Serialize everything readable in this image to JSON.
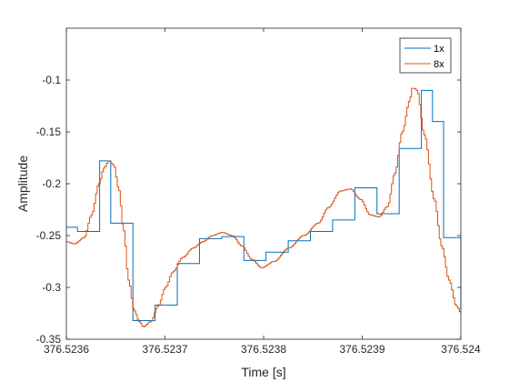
{
  "chart_data": {
    "type": "line",
    "title": "",
    "xlabel": "Time [s]",
    "ylabel": "Amplitude",
    "xlim": [
      376.5236,
      376.524
    ],
    "ylim": [
      -0.35,
      -0.05
    ],
    "x_ticks": [
      "376.5236",
      "376.5237",
      "376.5238",
      "376.5239",
      "376.524"
    ],
    "x_tick_values": [
      376.5236,
      376.5237,
      376.5238,
      376.5239,
      376.524
    ],
    "y_ticks": [
      "-0.35",
      "-0.3",
      "-0.25",
      "-0.2",
      "-0.15",
      "-0.1"
    ],
    "y_tick_values": [
      -0.35,
      -0.3,
      -0.25,
      -0.2,
      -0.15,
      -0.1
    ],
    "grid": false,
    "legend_position": "top-right",
    "series": [
      {
        "name": "1x",
        "color": "#0072BD",
        "step": "post",
        "x": [
          376.5236,
          376.52361125,
          376.5236225,
          376.52363375,
          376.523645,
          376.52365625,
          376.5236675,
          376.52367875,
          376.52369,
          376.52370125,
          376.5237125,
          376.52372375,
          376.523735,
          376.52374625,
          376.5237575,
          376.52376875,
          376.52378,
          376.52379125,
          376.5238025,
          376.52381375,
          376.523825,
          376.52383625,
          376.5238475,
          376.52385875,
          376.52387,
          376.52388125,
          376.5238925,
          376.52390375,
          376.523915,
          376.52392625,
          376.5239375,
          376.52394875,
          376.52396,
          376.52397125,
          376.5239825,
          376.52399375,
          376.524
        ],
        "values": [
          -0.242,
          -0.246,
          -0.246,
          -0.178,
          -0.238,
          -0.238,
          -0.332,
          -0.332,
          -0.317,
          -0.317,
          -0.277,
          -0.277,
          -0.253,
          -0.253,
          -0.251,
          -0.251,
          -0.274,
          -0.274,
          -0.266,
          -0.266,
          -0.255,
          -0.255,
          -0.246,
          -0.246,
          -0.235,
          -0.235,
          -0.204,
          -0.204,
          -0.229,
          -0.229,
          -0.166,
          -0.166,
          -0.11,
          -0.14,
          -0.252,
          -0.252,
          -0.322
        ]
      },
      {
        "name": "8x",
        "color": "#D95319",
        "step": "post",
        "knots": [
          [
            376.5236,
            -0.256
          ],
          [
            376.5236075,
            -0.258
          ],
          [
            376.5236175,
            -0.252
          ],
          [
            376.523625,
            -0.23
          ],
          [
            376.5236325,
            -0.2
          ],
          [
            376.5236375,
            -0.185
          ],
          [
            376.5236425,
            -0.178
          ],
          [
            376.5236475,
            -0.182
          ],
          [
            376.5236525,
            -0.205
          ],
          [
            376.5236575,
            -0.245
          ],
          [
            376.5236625,
            -0.293
          ],
          [
            376.523668,
            -0.322
          ],
          [
            376.5236735,
            -0.333
          ],
          [
            376.5236775,
            -0.338
          ],
          [
            376.523685,
            -0.333
          ],
          [
            376.5236925,
            -0.318
          ],
          [
            376.5237,
            -0.3
          ],
          [
            376.5237075,
            -0.285
          ],
          [
            376.5237175,
            -0.271
          ],
          [
            376.523728,
            -0.262
          ],
          [
            376.5237375,
            -0.256
          ],
          [
            376.5237475,
            -0.25
          ],
          [
            376.5237575,
            -0.247
          ],
          [
            376.5237675,
            -0.25
          ],
          [
            376.5237775,
            -0.26
          ],
          [
            376.5237875,
            -0.273
          ],
          [
            376.5237975,
            -0.281
          ],
          [
            376.52381,
            -0.275
          ],
          [
            376.523825,
            -0.262
          ],
          [
            376.52384,
            -0.25
          ],
          [
            376.523855,
            -0.238
          ],
          [
            376.523865,
            -0.223
          ],
          [
            376.5238775,
            -0.207
          ],
          [
            376.5238875,
            -0.205
          ],
          [
            376.5238975,
            -0.215
          ],
          [
            376.5239075,
            -0.23
          ],
          [
            376.52391625,
            -0.232
          ],
          [
            376.523925,
            -0.222
          ],
          [
            376.5239325,
            -0.19
          ],
          [
            376.52394,
            -0.15
          ],
          [
            376.5239475,
            -0.12
          ],
          [
            376.52395,
            -0.108
          ],
          [
            376.5239525,
            -0.108
          ],
          [
            376.523955,
            -0.11
          ],
          [
            376.5239625,
            -0.153
          ],
          [
            376.5239725,
            -0.215
          ],
          [
            376.52398,
            -0.26
          ],
          [
            376.5239875,
            -0.293
          ],
          [
            376.523995,
            -0.318
          ],
          [
            376.524,
            -0.325
          ]
        ]
      }
    ]
  }
}
